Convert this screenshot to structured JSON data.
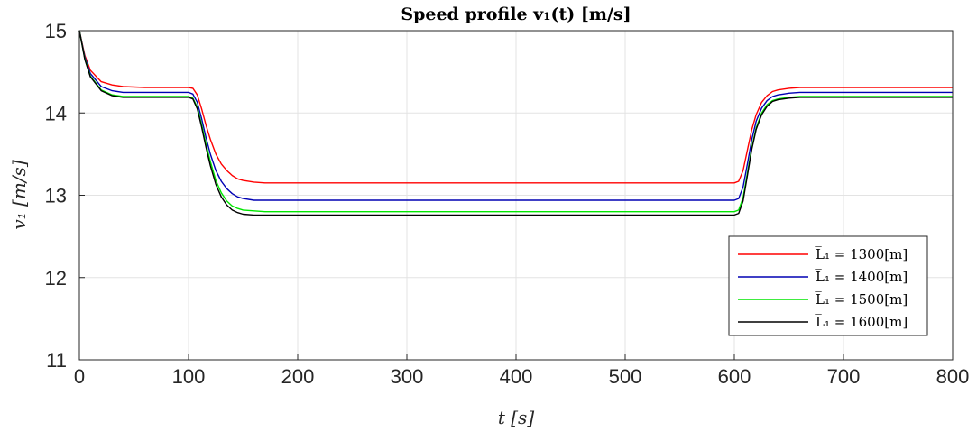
{
  "chart_data": {
    "type": "line",
    "title": "Speed profile v₁(t) [m/s]",
    "xlabel": "t [s]",
    "ylabel": "v₁ [m/s]",
    "xlim": [
      0,
      800
    ],
    "ylim": [
      11,
      15
    ],
    "xticks": [
      0,
      100,
      200,
      300,
      400,
      500,
      600,
      700,
      800
    ],
    "yticks": [
      11,
      12,
      13,
      14,
      15
    ],
    "grid": true,
    "legend_position": "right",
    "series": [
      {
        "name": "L̅₁ = 1300[m]",
        "color": "#ff0000",
        "x": [
          0,
          5,
          10,
          20,
          30,
          40,
          60,
          80,
          100,
          104,
          108,
          112,
          116,
          120,
          125,
          130,
          135,
          140,
          145,
          150,
          160,
          170,
          180,
          200,
          300,
          400,
          500,
          600,
          604,
          608,
          612,
          616,
          620,
          625,
          630,
          635,
          640,
          645,
          650,
          660,
          670,
          680,
          700,
          800
        ],
        "y": [
          15.0,
          14.7,
          14.52,
          14.38,
          14.34,
          14.32,
          14.31,
          14.31,
          14.31,
          14.3,
          14.22,
          14.05,
          13.85,
          13.68,
          13.5,
          13.38,
          13.3,
          13.24,
          13.2,
          13.18,
          13.16,
          13.15,
          13.15,
          13.15,
          13.15,
          13.15,
          13.15,
          13.15,
          13.17,
          13.3,
          13.55,
          13.8,
          13.98,
          14.13,
          14.21,
          14.26,
          14.28,
          14.29,
          14.3,
          14.31,
          14.31,
          14.31,
          14.31,
          14.31
        ]
      },
      {
        "name": "L̅₁ = 1400[m]",
        "color": "#0000b4",
        "x": [
          0,
          5,
          10,
          20,
          30,
          40,
          60,
          80,
          100,
          104,
          108,
          112,
          116,
          120,
          125,
          130,
          135,
          140,
          145,
          150,
          160,
          170,
          180,
          200,
          300,
          400,
          500,
          600,
          604,
          608,
          612,
          616,
          620,
          625,
          630,
          635,
          640,
          645,
          650,
          660,
          670,
          680,
          700,
          800
        ],
        "y": [
          15.0,
          14.68,
          14.48,
          14.32,
          14.27,
          14.25,
          14.25,
          14.25,
          14.25,
          14.23,
          14.13,
          13.93,
          13.7,
          13.5,
          13.3,
          13.17,
          13.08,
          13.02,
          12.98,
          12.96,
          12.94,
          12.94,
          12.94,
          12.94,
          12.94,
          12.94,
          12.94,
          12.94,
          12.96,
          13.1,
          13.38,
          13.68,
          13.9,
          14.06,
          14.15,
          14.2,
          14.22,
          14.23,
          14.24,
          14.25,
          14.25,
          14.25,
          14.25,
          14.25
        ]
      },
      {
        "name": "L̅₁ = 1500[m]",
        "color": "#00e600",
        "x": [
          0,
          5,
          10,
          20,
          30,
          40,
          60,
          80,
          100,
          104,
          108,
          112,
          116,
          120,
          125,
          130,
          135,
          140,
          145,
          150,
          160,
          170,
          180,
          200,
          300,
          400,
          500,
          600,
          604,
          608,
          612,
          616,
          620,
          625,
          630,
          635,
          640,
          645,
          650,
          660,
          670,
          680,
          700,
          800
        ],
        "y": [
          15.0,
          14.66,
          14.45,
          14.28,
          14.22,
          14.2,
          14.2,
          14.2,
          14.2,
          14.18,
          14.07,
          13.86,
          13.62,
          13.41,
          13.18,
          13.03,
          12.93,
          12.87,
          12.84,
          12.82,
          12.81,
          12.8,
          12.8,
          12.8,
          12.8,
          12.8,
          12.8,
          12.8,
          12.82,
          12.97,
          13.27,
          13.58,
          13.82,
          14.0,
          14.1,
          14.15,
          14.17,
          14.18,
          14.19,
          14.2,
          14.2,
          14.2,
          14.2,
          14.2
        ]
      },
      {
        "name": "L̅₁ = 1600[m]",
        "color": "#000000",
        "x": [
          0,
          5,
          10,
          20,
          30,
          40,
          60,
          80,
          100,
          104,
          108,
          112,
          116,
          120,
          125,
          130,
          135,
          140,
          145,
          150,
          160,
          170,
          180,
          200,
          300,
          400,
          500,
          600,
          604,
          608,
          612,
          616,
          620,
          625,
          630,
          635,
          640,
          645,
          650,
          660,
          670,
          680,
          700,
          800
        ],
        "y": [
          15.0,
          14.65,
          14.44,
          14.27,
          14.21,
          14.19,
          14.19,
          14.19,
          14.19,
          14.17,
          14.05,
          13.83,
          13.58,
          13.36,
          13.13,
          12.98,
          12.88,
          12.82,
          12.79,
          12.77,
          12.76,
          12.76,
          12.76,
          12.76,
          12.76,
          12.76,
          12.76,
          12.76,
          12.78,
          12.93,
          13.24,
          13.56,
          13.8,
          13.98,
          14.08,
          14.14,
          14.16,
          14.17,
          14.18,
          14.19,
          14.19,
          14.19,
          14.19,
          14.19
        ]
      }
    ]
  }
}
